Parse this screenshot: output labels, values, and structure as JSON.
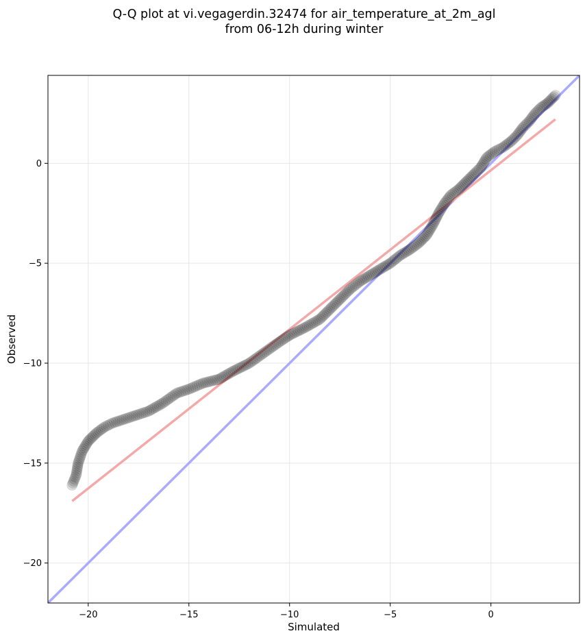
{
  "chart_data": {
    "type": "scatter",
    "title_line1": "Q-Q plot at vi.vegagerdin.32474 for air_temperature_at_2m_agl",
    "title_line2": "from 06-12h during winter",
    "xlabel": "Simulated",
    "ylabel": "Observed",
    "xlim": [
      -22,
      4.4
    ],
    "ylim": [
      -22,
      4.4
    ],
    "xticks": [
      -20,
      -15,
      -10,
      -5,
      0
    ],
    "yticks": [
      0,
      -5,
      -10,
      -15,
      -20
    ],
    "xtick_labels": [
      "−20",
      "−15",
      "−10",
      "−5",
      "0"
    ],
    "ytick_labels": [
      "0",
      "−5",
      "−10",
      "−15",
      "−20"
    ],
    "grid": true,
    "identity_line": {
      "color": "#aaaaff",
      "from": [
        -22,
        -22
      ],
      "to": [
        4.4,
        4.4
      ]
    },
    "fit_line": {
      "color": "#f4a9a9",
      "from": [
        -20.8,
        -16.9
      ],
      "to": [
        3.2,
        2.2
      ]
    },
    "point_color": "#000000",
    "quantile_curve": [
      [
        -20.8,
        -16.1
      ],
      [
        -20.6,
        -15.6
      ],
      [
        -20.5,
        -15.0
      ],
      [
        -20.3,
        -14.4
      ],
      [
        -20.0,
        -13.9
      ],
      [
        -19.6,
        -13.5
      ],
      [
        -19.2,
        -13.2
      ],
      [
        -18.8,
        -13.0
      ],
      [
        -18.2,
        -12.8
      ],
      [
        -17.6,
        -12.6
      ],
      [
        -17.0,
        -12.4
      ],
      [
        -16.3,
        -12.0
      ],
      [
        -15.6,
        -11.5
      ],
      [
        -15.0,
        -11.3
      ],
      [
        -14.3,
        -11.0
      ],
      [
        -13.5,
        -10.8
      ],
      [
        -12.8,
        -10.4
      ],
      [
        -12.0,
        -10.0
      ],
      [
        -11.3,
        -9.5
      ],
      [
        -10.6,
        -9.0
      ],
      [
        -10.0,
        -8.6
      ],
      [
        -9.2,
        -8.2
      ],
      [
        -8.5,
        -7.8
      ],
      [
        -8.0,
        -7.3
      ],
      [
        -7.5,
        -6.8
      ],
      [
        -7.0,
        -6.3
      ],
      [
        -6.5,
        -5.9
      ],
      [
        -6.0,
        -5.6
      ],
      [
        -5.5,
        -5.3
      ],
      [
        -5.0,
        -5.0
      ],
      [
        -4.5,
        -4.6
      ],
      [
        -4.0,
        -4.3
      ],
      [
        -3.6,
        -4.0
      ],
      [
        -3.2,
        -3.6
      ],
      [
        -2.9,
        -3.1
      ],
      [
        -2.6,
        -2.5
      ],
      [
        -2.3,
        -2.0
      ],
      [
        -2.0,
        -1.6
      ],
      [
        -1.6,
        -1.3
      ],
      [
        -1.2,
        -0.9
      ],
      [
        -0.8,
        -0.5
      ],
      [
        -0.5,
        -0.2
      ],
      [
        -0.2,
        0.3
      ],
      [
        0.2,
        0.6
      ],
      [
        0.6,
        0.8
      ],
      [
        1.0,
        1.1
      ],
      [
        1.3,
        1.4
      ],
      [
        1.6,
        1.8
      ],
      [
        1.9,
        2.1
      ],
      [
        2.2,
        2.5
      ],
      [
        2.5,
        2.8
      ],
      [
        2.8,
        3.0
      ],
      [
        3.0,
        3.2
      ],
      [
        3.2,
        3.4
      ]
    ]
  }
}
